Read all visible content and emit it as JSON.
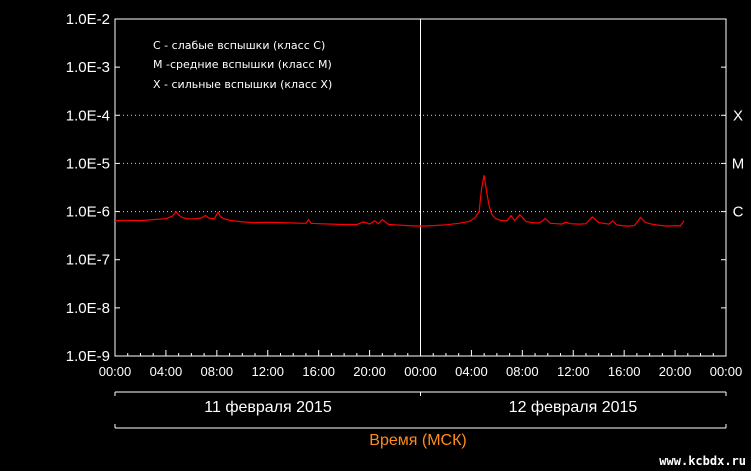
{
  "chart_data": {
    "type": "line",
    "y_scale": "log",
    "ylim": [
      "1.0E-9",
      "1.0E-2"
    ],
    "y_tick_labels": [
      "1.0E-2",
      "1.0E-3",
      "1.0E-4",
      "1.0E-5",
      "1.0E-6",
      "1.0E-7",
      "1.0E-8",
      "1.0E-9"
    ],
    "x_tick_labels": [
      "00:00",
      "04:00",
      "08:00",
      "12:00",
      "16:00",
      "20:00",
      "00:00",
      "04:00",
      "08:00",
      "12:00",
      "16:00",
      "20:00",
      "00:00"
    ],
    "xlabel": "Время (МСК)",
    "days": [
      "11 февраля 2015",
      "12 февраля 2015"
    ],
    "legend": [
      "C - слабые вспышки (класс C)",
      "M -средние вспышки (класс M)",
      "X - сильные вспышки (класс X)"
    ],
    "threshold_lines": [
      {
        "label": "X",
        "value": "1.0E-4"
      },
      {
        "label": "M",
        "value": "1.0E-5"
      },
      {
        "label": "C",
        "value": "1.0E-6"
      }
    ],
    "series_color": "#ff0000",
    "x_unit": "hours since 11 February 2015 00:00 MSK",
    "series": [
      {
        "x": [
          0,
          1,
          2,
          3,
          4,
          4.5,
          4.8,
          5.0,
          5.3,
          5.8,
          6.3,
          6.8,
          7.1,
          7.4,
          7.8,
          8.1,
          8.3,
          8.6,
          9,
          10,
          11,
          12,
          13,
          14,
          15,
          15.2,
          15.4,
          16,
          17,
          18,
          19,
          19.5,
          19.8,
          20,
          20.4,
          20.7,
          21,
          21.5,
          22,
          23,
          24,
          25,
          26,
          27,
          27.8,
          28.3,
          28.6,
          28.8,
          29.0,
          29.2,
          29.4,
          29.6,
          29.9,
          30.3,
          30.8,
          31.1,
          31.4,
          31.8,
          32.3,
          32.8,
          33.2,
          33.5,
          33.8,
          34.2,
          34.7,
          35.1,
          35.4,
          35.8,
          36.5,
          37,
          37.5,
          38,
          38.8,
          39.1,
          39.4,
          39.8,
          40.3,
          40.8,
          41.1,
          41.3,
          41.6,
          42,
          42.5,
          43.3,
          44.1,
          44.4,
          44.7
        ],
        "y": [
          6.5e-07,
          6.6e-07,
          6.5e-07,
          6.8e-07,
          7.1e-07,
          8e-07,
          1e-06,
          8.5e-07,
          7.5e-07,
          7e-07,
          7.1e-07,
          7.4e-07,
          8.3e-07,
          7.3e-07,
          7.1e-07,
          9.7e-07,
          7.8e-07,
          7e-07,
          6.6e-07,
          6.1e-07,
          5.9e-07,
          6e-07,
          5.9e-07,
          5.8e-07,
          5.7e-07,
          6.8e-07,
          5.7e-07,
          5.6e-07,
          5.5e-07,
          5.4e-07,
          5.4e-07,
          6.1e-07,
          5.8e-07,
          5.5e-07,
          6.4e-07,
          5.6e-07,
          6.8e-07,
          5.4e-07,
          5.3e-07,
          5.1e-07,
          5e-07,
          5.1e-07,
          5.3e-07,
          5.7e-07,
          6.2e-07,
          7.5e-07,
          1e-06,
          3e-06,
          5.7e-06,
          2.5e-06,
          1.3e-06,
          8.7e-07,
          7.1e-07,
          6.6e-07,
          6.4e-07,
          8.3e-07,
          6.5e-07,
          8.6e-07,
          6.2e-07,
          5.9e-07,
          5.8e-07,
          6.1e-07,
          7.2e-07,
          5.7e-07,
          5.6e-07,
          5.5e-07,
          6e-07,
          5.6e-07,
          5.5e-07,
          5.6e-07,
          7.7e-07,
          5.9e-07,
          5.5e-07,
          6.4e-07,
          5.3e-07,
          5.1e-07,
          5e-07,
          5.1e-07,
          6.5e-07,
          7.6e-07,
          6.1e-07,
          5.6e-07,
          5.3e-07,
          5e-07,
          5.1e-07,
          5e-07,
          6.4e-07
        ]
      }
    ]
  },
  "watermark": "www.kcbdx.ru",
  "colors": {
    "background": "#000000",
    "foreground": "#ffffff",
    "series": "#ff0000",
    "axis_title": "#ff8c1a"
  }
}
